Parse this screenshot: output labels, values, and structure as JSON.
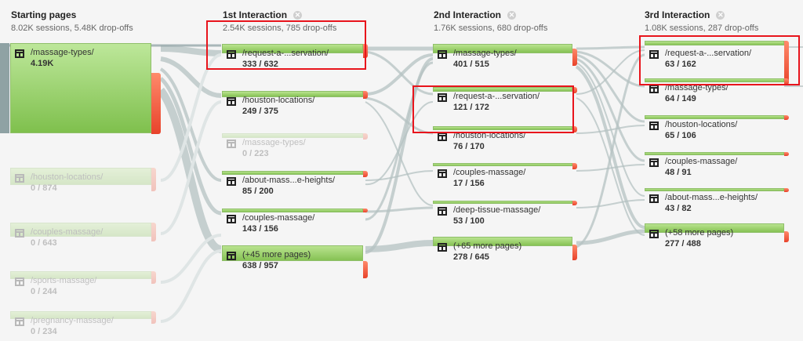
{
  "columns": [
    {
      "title": "Starting pages",
      "summary": "8.02K sessions, 5.48K drop-offs"
    },
    {
      "title": "1st Interaction",
      "summary": "2.54K sessions, 785 drop-offs"
    },
    {
      "title": "2nd Interaction",
      "summary": "1.76K sessions, 680 drop-offs"
    },
    {
      "title": "3rd Interaction",
      "summary": "1.08K sessions, 287 drop-offs"
    }
  ],
  "close_glyph": "⊗",
  "starting": [
    {
      "page": "/massage-types/",
      "count": "4.19K"
    },
    {
      "page": "/houston-locations/",
      "count": "0 / 874"
    },
    {
      "page": "/couples-massage/",
      "count": "0 / 643"
    },
    {
      "page": "/sports-massage/",
      "count": "0 / 244"
    },
    {
      "page": "/pregnancy-massage/",
      "count": "0 / 234"
    }
  ],
  "first": [
    {
      "page": "/request-a-...servation/",
      "count": "333 / 632"
    },
    {
      "page": "/houston-locations/",
      "count": "249 / 375"
    },
    {
      "page": "/massage-types/",
      "count": "0 / 223"
    },
    {
      "page": "/about-mass...e-heights/",
      "count": "85 / 200"
    },
    {
      "page": "/couples-massage/",
      "count": "143 / 156"
    },
    {
      "page": "(+45 more pages)",
      "count": "638 / 957"
    }
  ],
  "second": [
    {
      "page": "/massage-types/",
      "count": "401 / 515"
    },
    {
      "page": "/request-a-...servation/",
      "count": "121 / 172"
    },
    {
      "page": "/houston-locations/",
      "count": "76 / 170"
    },
    {
      "page": "/couples-massage/",
      "count": "17 / 156"
    },
    {
      "page": "/deep-tissue-massage/",
      "count": "53 / 100"
    },
    {
      "page": "(+65 more pages)",
      "count": "278 / 645"
    }
  ],
  "third": [
    {
      "page": "/request-a-...servation/",
      "count": "63 / 162"
    },
    {
      "page": "/massage-types/",
      "count": "64 / 149"
    },
    {
      "page": "/houston-locations/",
      "count": "65 / 106"
    },
    {
      "page": "/couples-massage/",
      "count": "48 / 91"
    },
    {
      "page": "/about-mass...e-heights/",
      "count": "43 / 82"
    },
    {
      "page": "(+58 more pages)",
      "count": "277 / 488"
    }
  ],
  "colors": {
    "node_green": "#86c254",
    "dropoff_red": "#e8432b",
    "flow_gray": "#c9d1d1",
    "highlight_red": "#e8141c"
  }
}
